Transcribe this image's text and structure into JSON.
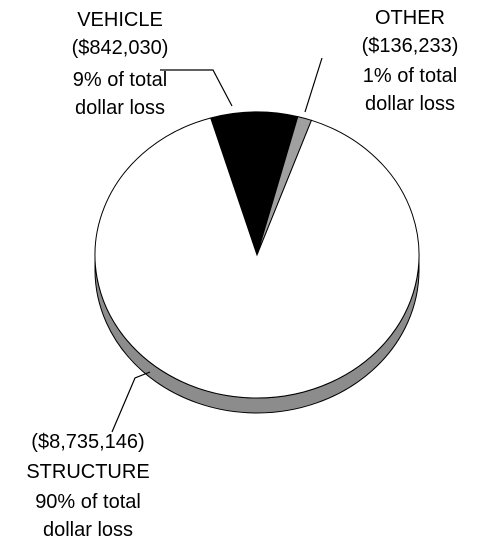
{
  "chart_data": {
    "type": "pie",
    "categories": [
      "VEHICLE",
      "OTHER",
      "STRUCTURE"
    ],
    "values": [
      842030,
      136233,
      8735146
    ],
    "value_labels": [
      "($842,030)",
      "($136,233)",
      "($8,735,146)"
    ],
    "percent_labels": [
      "9% of total dollar loss",
      "1% of total dollar loss",
      "90% of total dollar loss"
    ],
    "colors": [
      "#000000",
      "#a0a0a0",
      "#ffffff"
    ]
  }
}
